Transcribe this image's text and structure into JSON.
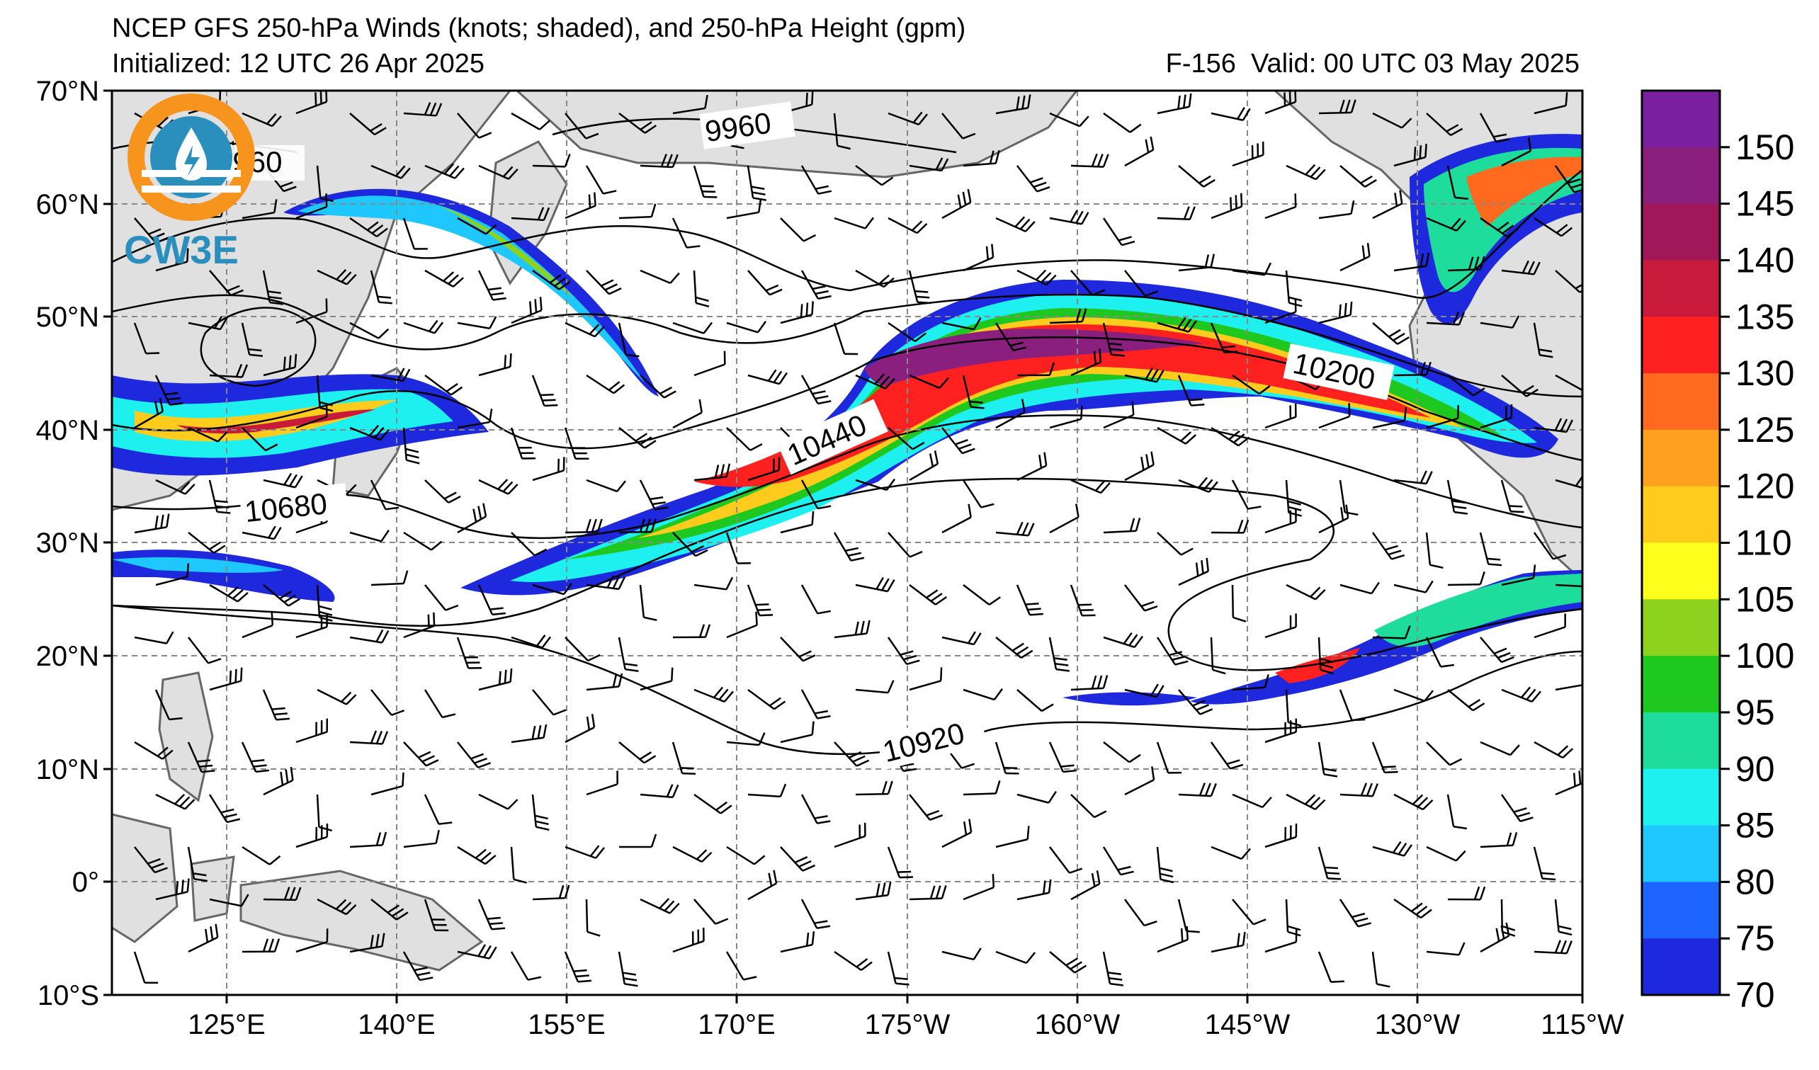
{
  "header": {
    "title": "NCEP GFS 250-hPa Winds (knots; shaded), and 250-hPa Height (gpm)",
    "initialized": "Initialized: 12 UTC 26 Apr 2025",
    "forecast": "F-156",
    "valid": "Valid: 00 UTC 03 May 2025"
  },
  "logo": {
    "text": "CW3E"
  },
  "axes": {
    "lat_labels": [
      "70°N",
      "60°N",
      "50°N",
      "40°N",
      "30°N",
      "20°N",
      "10°N",
      "0°",
      "10°S"
    ],
    "lon_labels": [
      "125°E",
      "140°E",
      "155°E",
      "170°E",
      "175°W",
      "160°W",
      "145°W",
      "130°W",
      "115°W"
    ]
  },
  "contours": {
    "labels": [
      "9960",
      "9960",
      "10200",
      "10440",
      "10680",
      "10920"
    ]
  },
  "colorbar": {
    "labels": [
      "150",
      "145",
      "140",
      "135",
      "130",
      "125",
      "120",
      "110",
      "105",
      "100",
      "95",
      "90",
      "85",
      "80",
      "75",
      "70"
    ],
    "colors": [
      "#7a1fa0",
      "#8a1f7e",
      "#a0185a",
      "#c81b3c",
      "#ff2020",
      "#ff6a1e",
      "#ffa01e",
      "#ffcc1e",
      "#ffff1e",
      "#8cd21e",
      "#1ec81e",
      "#1edc9b",
      "#1ef0f0",
      "#1ec8ff",
      "#1e64ff",
      "#1e28dc"
    ]
  },
  "field_colors": {
    "land": "#e0e0e0",
    "ocean": "#ffffff",
    "coast": "#666666",
    "grid": "#888888"
  }
}
